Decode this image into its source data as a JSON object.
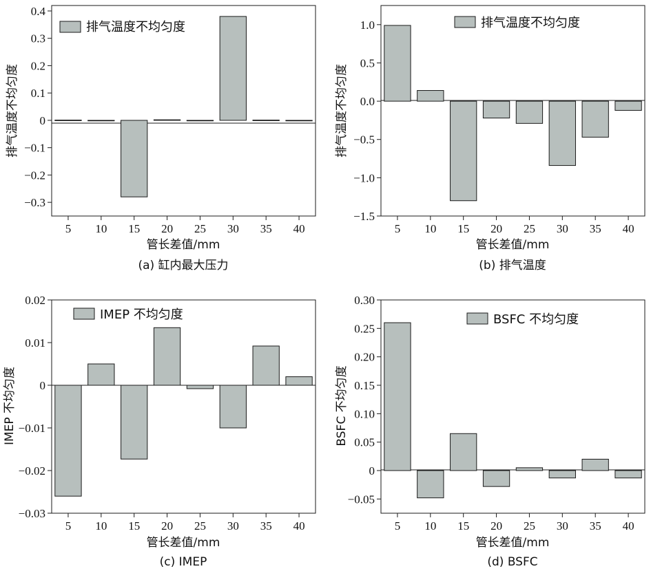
{
  "chart_data": [
    {
      "type": "bar",
      "caption": "(a) 缸内最大压力",
      "legend": "排气温度不均匀度",
      "xlabel": "管长差值/mm",
      "ylabel": "排气温度不均匀度",
      "categories": [
        "5",
        "10",
        "15",
        "20",
        "25",
        "30",
        "35",
        "40"
      ],
      "values": [
        0.001,
        0.0,
        -0.28,
        0.002,
        0.0,
        0.38,
        0.001,
        0.0
      ],
      "ylim": [
        -0.35,
        0.42
      ],
      "yticks": [
        0.4,
        0.3,
        0.2,
        0.1,
        0,
        -0.1,
        -0.2,
        -0.3
      ],
      "ytick_labels": [
        "0.4",
        "0.3",
        "0.2",
        "0.1",
        "0",
        "−0.1",
        "−0.2",
        "−0.3"
      ]
    },
    {
      "type": "bar",
      "caption": "(b) 排气温度",
      "legend": "排气温度不均匀度",
      "xlabel": "管长差值/mm",
      "ylabel": "排气温度不均匀度",
      "categories": [
        "5",
        "10",
        "15",
        "20",
        "25",
        "30",
        "35",
        "40"
      ],
      "values": [
        0.99,
        0.14,
        -1.3,
        -0.22,
        -0.29,
        -0.84,
        -0.47,
        -0.12
      ],
      "ylim": [
        -1.5,
        1.25
      ],
      "yticks": [
        1.0,
        0.5,
        0.0,
        -0.5,
        -1.0,
        -1.5
      ],
      "ytick_labels": [
        "1.0",
        "0.5",
        "0.0",
        "−0.5",
        "−1.0",
        "−1.5"
      ]
    },
    {
      "type": "bar",
      "caption": "(c) IMEP",
      "legend": "IMEP 不均匀度",
      "xlabel": "管长差值/mm",
      "ylabel": "IMEP 不均匀度",
      "categories": [
        "5",
        "10",
        "15",
        "20",
        "25",
        "30",
        "35",
        "40"
      ],
      "values": [
        -0.026,
        0.005,
        -0.0173,
        0.0135,
        -0.0008,
        -0.01,
        0.0092,
        0.002
      ],
      "ylim": [
        -0.03,
        0.02
      ],
      "yticks": [
        0.02,
        0.01,
        0,
        -0.01,
        -0.02,
        -0.03
      ],
      "ytick_labels": [
        "0.02",
        "0.01",
        "0",
        "−0.01",
        "−0.02",
        "−0.03"
      ]
    },
    {
      "type": "bar",
      "caption": "(d) BSFC",
      "legend": "BSFC 不均匀度",
      "xlabel": "管长差值/mm",
      "ylabel": "BSFC 不均匀度",
      "categories": [
        "5",
        "10",
        "15",
        "20",
        "25",
        "30",
        "35",
        "40"
      ],
      "values": [
        0.26,
        -0.048,
        0.065,
        -0.028,
        0.005,
        -0.013,
        0.02,
        -0.013
      ],
      "ylim": [
        -0.075,
        0.3
      ],
      "yticks": [
        0.3,
        0.25,
        0.2,
        0.15,
        0.1,
        0.05,
        0,
        -0.05
      ],
      "ytick_labels": [
        "0.30",
        "0.25",
        "0.20",
        "0.15",
        "0.10",
        "0.05",
        "0",
        "−0.05"
      ]
    }
  ],
  "colors": {
    "bar_fill": "#b7bfbd",
    "stroke": "#1a1a1a"
  }
}
